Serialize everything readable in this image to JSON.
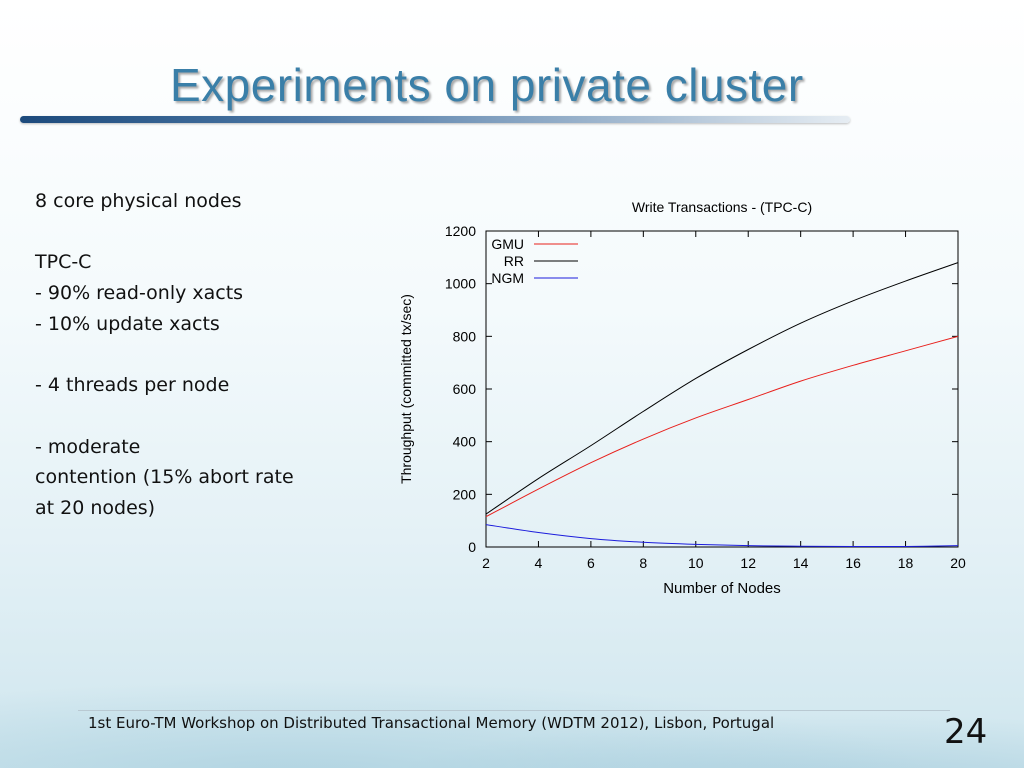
{
  "slide": {
    "title": "Experiments on private cluster",
    "body_lines": [
      "8 core physical nodes",
      "",
      "TPC-C",
      "- 90% read-only xacts",
      "- 10% update xacts",
      "",
      "- 4 threads per node",
      "",
      "- moderate",
      "contention (15% abort rate",
      "at 20 nodes)"
    ],
    "footer": "1st  Euro-TM Workshop on Distributed Transactional Memory (WDTM 2012), Lisbon, Portugal",
    "page_number": "24"
  },
  "chart_data": {
    "type": "line",
    "title": "Write Transactions - (TPC-C)",
    "xlabel": "Number of Nodes",
    "ylabel": "Throughput (committed tx/sec)",
    "xlim": [
      2,
      20
    ],
    "ylim": [
      0,
      1200
    ],
    "xticks": [
      2,
      4,
      6,
      8,
      10,
      12,
      14,
      16,
      18,
      20
    ],
    "yticks": [
      0,
      200,
      400,
      600,
      800,
      1000,
      1200
    ],
    "legend_position": "top-left",
    "grid": false,
    "x": [
      2,
      4,
      6,
      8,
      10,
      12,
      14,
      16,
      18,
      20
    ],
    "series": [
      {
        "name": "GMU",
        "color": "#e8201c",
        "values": [
          115,
          220,
          320,
          410,
          490,
          560,
          630,
          690,
          745,
          800
        ]
      },
      {
        "name": "RR",
        "color": "#000000",
        "values": [
          125,
          260,
          385,
          515,
          640,
          750,
          850,
          935,
          1010,
          1080
        ]
      },
      {
        "name": "NGM",
        "color": "#1c1cdc",
        "values": [
          85,
          55,
          32,
          18,
          10,
          5,
          3,
          2,
          2,
          5
        ]
      }
    ]
  }
}
